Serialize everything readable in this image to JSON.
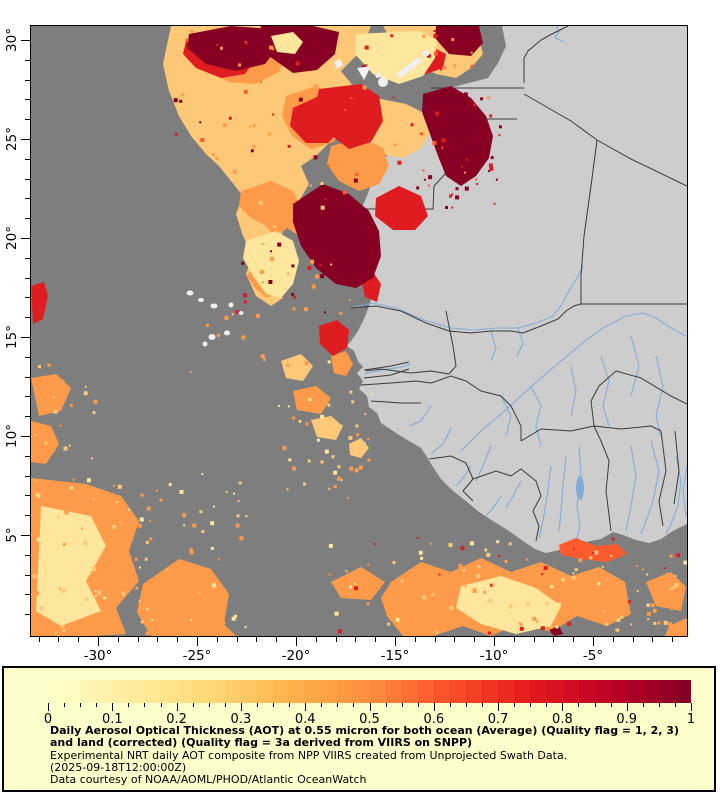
{
  "map": {
    "lat_axis": {
      "tick_labels": [
        "30°",
        "25°",
        "20°",
        "15°",
        "10°",
        "5°"
      ],
      "tick_degrees": [
        30,
        25,
        20,
        15,
        10,
        5
      ]
    },
    "lon_axis": {
      "tick_labels": [
        "-30°",
        "-25°",
        "-20°",
        "-15°",
        "-10°",
        "-5°"
      ],
      "tick_degrees": [
        -30,
        -25,
        -20,
        -15,
        -10,
        -5
      ]
    },
    "colors": {
      "ocean": "#7E7E7E",
      "land": "#CDCDCD",
      "island": "#F0F0F0",
      "border": "#3A3A3A",
      "river": "#84ACD8",
      "a_cream": "#FEE79C",
      "a_light": "#FDC878",
      "a_orange": "#FD9B4A",
      "a_deep": "#FC5B2E",
      "a_red": "#DF1C20",
      "a_maroon": "#870023"
    }
  },
  "legend": {
    "panel_bg": "#FFFFCC",
    "colorbar": {
      "min": 0,
      "max": 1,
      "tick_labels": [
        "0",
        "0.1",
        "0.2",
        "0.3",
        "0.4",
        "0.5",
        "0.6",
        "0.7",
        "0.8",
        "0.9",
        "1"
      ],
      "stops": [
        "#FFFFCC",
        "#FFEDA0",
        "#FED976",
        "#FEB24C",
        "#FD8D3C",
        "#FC4E2A",
        "#E31A1C",
        "#BD0026",
        "#800026"
      ]
    },
    "caption": {
      "title": "Daily Aerosol Optical Thickness (AOT) at 0.55 micron for both ocean (Average) (Quality flag = 1, 2, 3) and land (corrected) (Quality flag = 3a derived from VIIRS on SNPP)",
      "line2": "Experimental NRT daily AOT composite from NPP VIIRS created from Unprojected Swath Data.",
      "line3": "(2025-09-18T12:00:00Z)",
      "line4": "Data courtesy of NOAA/AOML/PHOD/Atlantic OceanWatch"
    }
  }
}
